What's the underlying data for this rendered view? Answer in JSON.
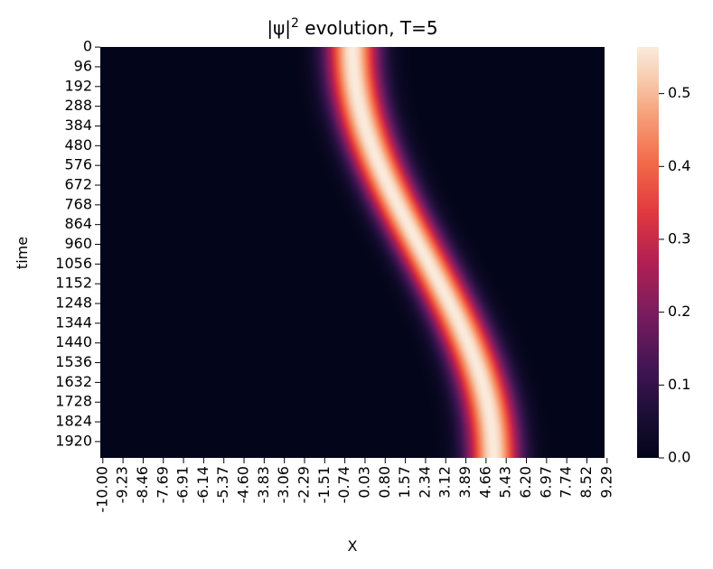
{
  "chart_data": {
    "type": "heatmap",
    "title_prefix": "|ψ|",
    "title_sup": "2",
    "title_suffix": " evolution, T=5",
    "xlabel": "X",
    "ylabel": "time",
    "x_range": [
      -10.0,
      10.0
    ],
    "y_range": [
      0,
      2000
    ],
    "x_tick_labels": [
      "-10.00",
      "-9.23",
      "-8.46",
      "-7.69",
      "-6.91",
      "-6.14",
      "-5.37",
      "-4.60",
      "-3.83",
      "-3.06",
      "-2.29",
      "-1.51",
      "-0.74",
      "0.03",
      "0.80",
      "1.57",
      "2.34",
      "3.12",
      "3.89",
      "4.66",
      "5.43",
      "6.20",
      "6.97",
      "7.74",
      "8.52",
      "9.29"
    ],
    "y_tick_labels": [
      "0",
      "96",
      "192",
      "288",
      "384",
      "480",
      "576",
      "672",
      "768",
      "864",
      "960",
      "1056",
      "1152",
      "1248",
      "1344",
      "1440",
      "1536",
      "1632",
      "1728",
      "1824",
      "1920"
    ],
    "colorbar": {
      "min": 0.0,
      "max": 0.564,
      "tick_values": [
        0.0,
        0.1,
        0.2,
        0.3,
        0.4,
        0.5
      ],
      "tick_labels": [
        "0.0",
        "0.1",
        "0.2",
        "0.3",
        "0.4",
        "0.5"
      ],
      "colormap": "rocket"
    },
    "packet": {
      "peak_value": 0.564,
      "width_sigma": 1.0,
      "center_start_x": 0.0,
      "center_end_x": 5.6,
      "trajectory": "x(t) = 2.8*(1 - cos(pi*t/2000)) for t in 0..2000"
    },
    "grid": false
  }
}
